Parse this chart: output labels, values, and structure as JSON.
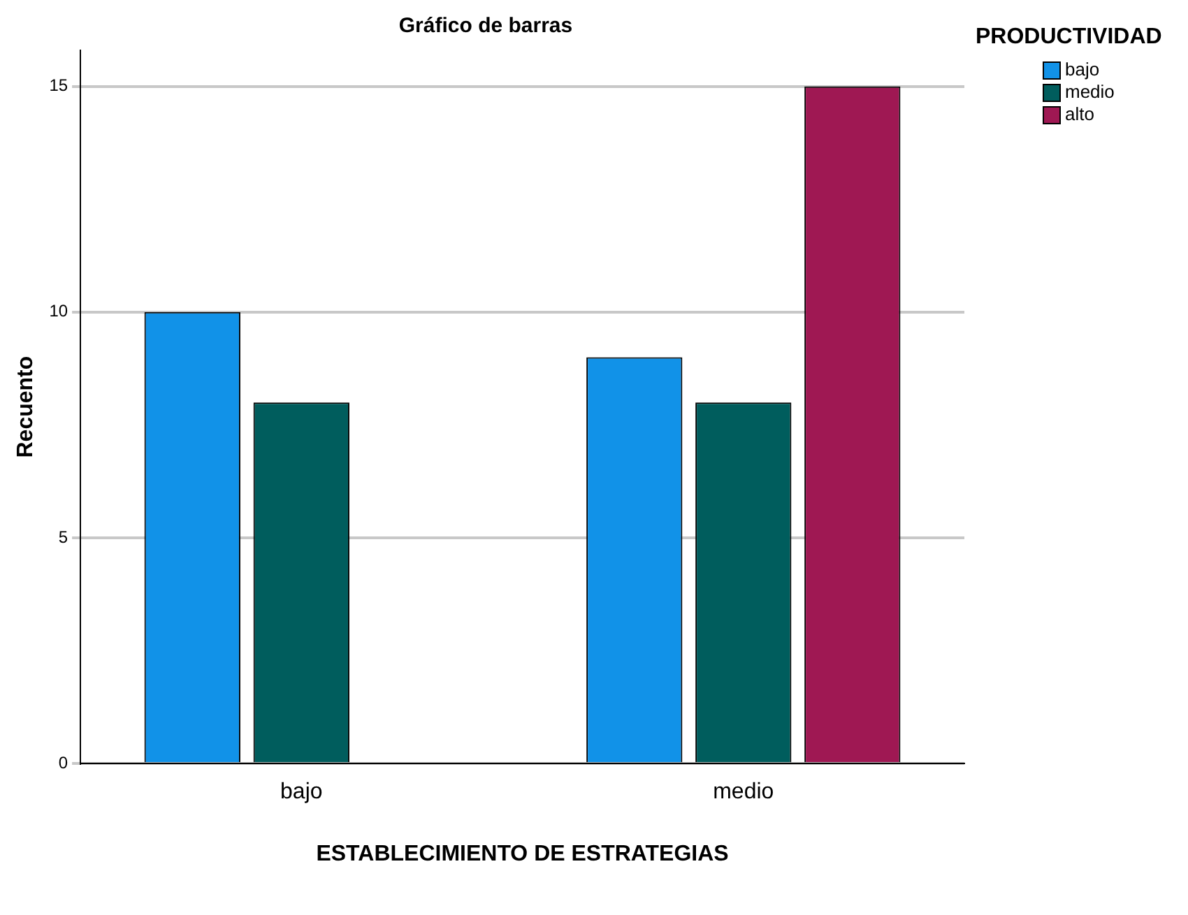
{
  "chart_data": {
    "type": "bar",
    "title": "Gráfico de barras",
    "xlabel": "ESTABLECIMIENTO DE ESTRATEGIAS",
    "ylabel": "Recuento",
    "legend_title": "PRODUCTIVIDAD",
    "categories": [
      "bajo",
      "medio"
    ],
    "series": [
      {
        "name": "bajo",
        "color": "#1192e8",
        "values": [
          10,
          9
        ]
      },
      {
        "name": "medio",
        "color": "#005d5d",
        "values": [
          8,
          8
        ]
      },
      {
        "name": "alto",
        "color": "#9f1853",
        "values": [
          null,
          15
        ]
      }
    ],
    "ylim": [
      0,
      15.8
    ],
    "yticks": [
      0,
      5,
      10,
      15
    ],
    "grid": "y",
    "legend": "top right"
  }
}
